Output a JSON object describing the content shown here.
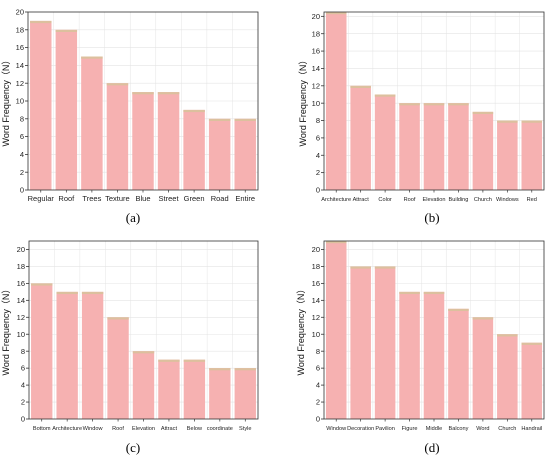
{
  "style": {
    "bar_color": "#f6b1b1",
    "bar_top_color": "#dcc09e",
    "grid_color": "#e4e4e4",
    "axis_color": "#333333"
  },
  "chart_data": [
    {
      "type": "bar",
      "label": "(a)",
      "ylabel": "Word Frequency（N）",
      "ylim": [
        0,
        20
      ],
      "yticks": [
        0,
        2,
        4,
        6,
        8,
        10,
        12,
        14,
        16,
        18,
        20
      ],
      "grid": true,
      "categories": [
        "Regular",
        "Roof",
        "Trees",
        "Texture",
        "Blue",
        "Street",
        "Green",
        "Road",
        "Entire"
      ],
      "values": [
        19,
        18,
        15,
        12,
        11,
        11,
        9,
        8,
        8
      ]
    },
    {
      "type": "bar",
      "label": "(b)",
      "ylabel": "Word Frequency（N）",
      "ylim": [
        0,
        20.5
      ],
      "yticks": [
        0,
        2,
        4,
        6,
        8,
        10,
        12,
        14,
        16,
        18,
        20
      ],
      "grid": true,
      "categories": [
        "Architecture",
        "Attract",
        "Color",
        "Roof",
        "Elevation",
        "Building",
        "Church",
        "Windows",
        "Red"
      ],
      "values": [
        21,
        12,
        11,
        10,
        10,
        10,
        9,
        8,
        8
      ]
    },
    {
      "type": "bar",
      "label": "(c)",
      "ylabel": "Word Frequency（N）",
      "ylim": [
        0,
        21
      ],
      "yticks": [
        0,
        2,
        4,
        6,
        8,
        10,
        12,
        14,
        16,
        18,
        20
      ],
      "grid": true,
      "categories": [
        "Bottom",
        "Architecture",
        "Window",
        "Roof",
        "Elevation",
        "Attract",
        "Below",
        "coordinate",
        "Style"
      ],
      "values": [
        16,
        15,
        15,
        12,
        8,
        7,
        7,
        6,
        6
      ]
    },
    {
      "type": "bar",
      "label": "(d)",
      "ylabel": "Word Frequency（N）",
      "ylim": [
        0,
        21
      ],
      "yticks": [
        0,
        2,
        4,
        6,
        8,
        10,
        12,
        14,
        16,
        18,
        20
      ],
      "grid": true,
      "categories": [
        "Window",
        "Decoration",
        "Pavilion",
        "Figure",
        "Middle",
        "Balcony",
        "Word",
        "Church",
        "Handrail"
      ],
      "values": [
        21,
        18,
        18,
        15,
        15,
        13,
        12,
        10,
        9
      ]
    }
  ]
}
